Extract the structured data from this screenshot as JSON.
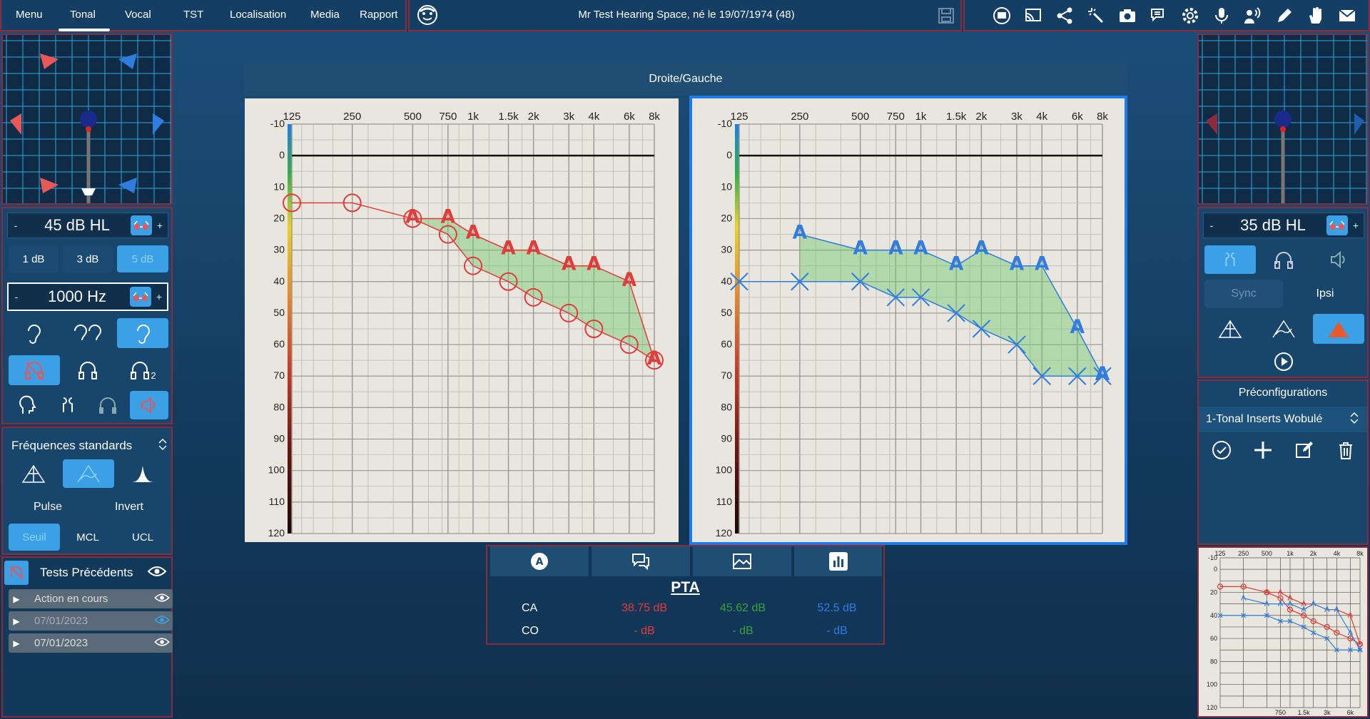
{
  "topbar": {
    "menu": [
      "Menu",
      "Tonal",
      "Vocal",
      "TST",
      "Localisation",
      "Media",
      "Rapport"
    ],
    "active_menu": "Tonal",
    "patient_title": "Mr Test Hearing Space, né le 19/07/1974 (48)",
    "icons": [
      "settings-window-icon",
      "cast-icon",
      "share-icon",
      "sparkle-icon",
      "camera-icon",
      "chat-icon",
      "gear-icon",
      "microphone-icon",
      "person-signal-icon",
      "edit-icon",
      "hand-icon",
      "mail-icon"
    ]
  },
  "left": {
    "level": "45 dB HL",
    "minus": "-",
    "plus": "+",
    "steps": [
      "1 dB",
      "3 dB",
      "5 dB"
    ],
    "active_step": "5 dB",
    "frequency": "1000 Hz",
    "headphone_badge": "2",
    "freq_mode": "Fréquences standards",
    "pulse": "Pulse",
    "invert": "Invert",
    "modes": [
      "Seuil",
      "MCL",
      "UCL"
    ],
    "active_mode": "Seuil",
    "previous_tests_title": "Tests Précédents",
    "previous_tests": [
      "Action en cours",
      "07/01/2023",
      "07/01/2023"
    ]
  },
  "right": {
    "level": "35 dB HL",
    "minus": "-",
    "plus": "+",
    "sync": "Sync",
    "ipsi": "Ipsi",
    "preconfig_title": "Préconfigurations",
    "preconfig_value": "1-Tonal Inserts Wobulé"
  },
  "center": {
    "header": "Droite/Gauche"
  },
  "pta": {
    "title": "PTA",
    "rows": [
      {
        "label": "CA",
        "right": "38.75 dB",
        "avg": "45.62 dB",
        "left": "52.5 dB"
      },
      {
        "label": "CO",
        "right": "- dB",
        "avg": "- dB",
        "left": "- dB"
      }
    ],
    "colors": {
      "right": "#e23b3b",
      "avg": "#3aa13a",
      "left": "#2f7de0"
    }
  },
  "chart_data": [
    {
      "type": "line",
      "ear": "right",
      "x_ticks": [
        "125",
        "250",
        "500",
        "750",
        "1k",
        "1.5k",
        "2k",
        "3k",
        "4k",
        "6k",
        "8k"
      ],
      "x_hz": [
        125,
        250,
        500,
        750,
        1000,
        1500,
        2000,
        3000,
        4000,
        6000,
        8000
      ],
      "y_ticks": [
        -10,
        0,
        10,
        20,
        30,
        40,
        50,
        60,
        70,
        80,
        90,
        100,
        110,
        120
      ],
      "ylim": [
        -10,
        120
      ],
      "grid": true,
      "color": "#e23b3b",
      "series": [
        {
          "symbol": "O",
          "x": [
            125,
            250,
            500,
            750,
            1000,
            1500,
            2000,
            3000,
            4000,
            6000,
            8000
          ],
          "values": [
            15,
            15,
            20,
            25,
            35,
            40,
            45,
            50,
            55,
            60,
            65
          ]
        },
        {
          "symbol": "A",
          "x": [
            500,
            750,
            1000,
            1500,
            2000,
            3000,
            4000,
            6000,
            8000
          ],
          "values": [
            20,
            20,
            25,
            30,
            30,
            35,
            35,
            40,
            65
          ]
        }
      ]
    },
    {
      "type": "line",
      "ear": "left",
      "x_ticks": [
        "125",
        "250",
        "500",
        "750",
        "1k",
        "1.5k",
        "2k",
        "3k",
        "4k",
        "6k",
        "8k"
      ],
      "x_hz": [
        125,
        250,
        500,
        750,
        1000,
        1500,
        2000,
        3000,
        4000,
        6000,
        8000
      ],
      "y_ticks": [
        -10,
        0,
        10,
        20,
        30,
        40,
        50,
        60,
        70,
        80,
        90,
        100,
        110,
        120
      ],
      "ylim": [
        -10,
        120
      ],
      "grid": true,
      "color": "#2f7de0",
      "series": [
        {
          "symbol": "X",
          "x": [
            125,
            250,
            500,
            750,
            1000,
            1500,
            2000,
            3000,
            4000,
            6000,
            8000
          ],
          "values": [
            40,
            40,
            40,
            45,
            45,
            50,
            55,
            60,
            70,
            70,
            70
          ]
        },
        {
          "symbol": "A",
          "x": [
            250,
            500,
            750,
            1000,
            1500,
            2000,
            3000,
            4000,
            6000,
            8000
          ],
          "values": [
            25,
            30,
            30,
            30,
            35,
            30,
            35,
            35,
            55,
            70
          ]
        }
      ]
    }
  ],
  "thumb_chart": {
    "x_ticks": [
      "125",
      "250",
      "500",
      "1k",
      "2k",
      "4k",
      "8k"
    ],
    "x_ticks_bottom": [
      "750",
      "1.5k",
      "3k",
      "6k"
    ],
    "y_ticks": [
      "-10",
      "0",
      "20",
      "40",
      "60",
      "80",
      "100",
      "120"
    ]
  }
}
